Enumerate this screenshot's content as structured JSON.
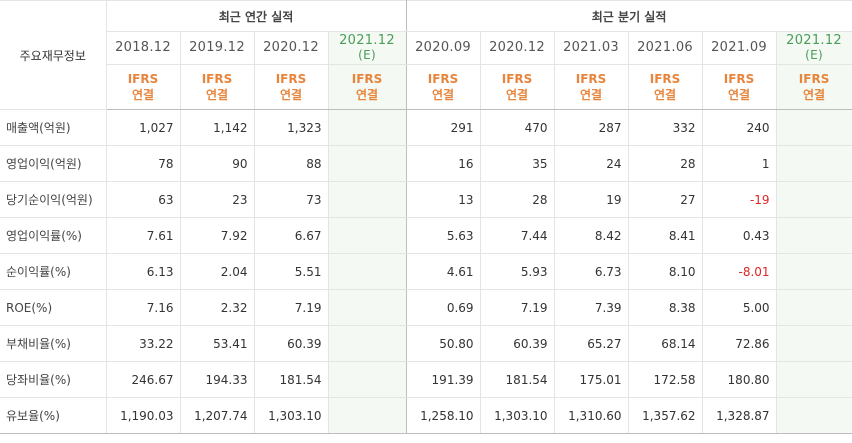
{
  "header": {
    "corner_label": "주요재무정보",
    "annual_group": "최근 연간 실적",
    "quarterly_group": "최근 분기 실적",
    "accounting_line1": "IFRS",
    "accounting_line2": "연결"
  },
  "columns": [
    {
      "period": "2018.12",
      "estimate": ""
    },
    {
      "period": "2019.12",
      "estimate": ""
    },
    {
      "period": "2020.12",
      "estimate": ""
    },
    {
      "period": "2021.12",
      "estimate": "(E)"
    },
    {
      "period": "2020.09",
      "estimate": ""
    },
    {
      "period": "2020.12",
      "estimate": ""
    },
    {
      "period": "2021.03",
      "estimate": ""
    },
    {
      "period": "2021.06",
      "estimate": ""
    },
    {
      "period": "2021.09",
      "estimate": ""
    },
    {
      "period": "2021.12",
      "estimate": "(E)"
    }
  ],
  "rows": [
    {
      "label": "매출액(억원)",
      "values": [
        "1,027",
        "1,142",
        "1,323",
        "",
        "291",
        "470",
        "287",
        "332",
        "240",
        ""
      ]
    },
    {
      "label": "영업이익(억원)",
      "values": [
        "78",
        "90",
        "88",
        "",
        "16",
        "35",
        "24",
        "28",
        "1",
        ""
      ]
    },
    {
      "label": "당기순이익(억원)",
      "values": [
        "63",
        "23",
        "73",
        "",
        "13",
        "28",
        "19",
        "27",
        "-19",
        ""
      ]
    },
    {
      "label": "영업이익률(%)",
      "values": [
        "7.61",
        "7.92",
        "6.67",
        "",
        "5.63",
        "7.44",
        "8.42",
        "8.41",
        "0.43",
        ""
      ]
    },
    {
      "label": "순이익률(%)",
      "values": [
        "6.13",
        "2.04",
        "5.51",
        "",
        "4.61",
        "5.93",
        "6.73",
        "8.10",
        "-8.01",
        ""
      ]
    },
    {
      "label": "ROE(%)",
      "values": [
        "7.16",
        "2.32",
        "7.19",
        "",
        "0.69",
        "7.19",
        "7.39",
        "8.38",
        "5.00",
        ""
      ]
    },
    {
      "label": "부채비율(%)",
      "values": [
        "33.22",
        "53.41",
        "60.39",
        "",
        "50.80",
        "60.39",
        "65.27",
        "68.14",
        "72.86",
        ""
      ]
    },
    {
      "label": "당좌비율(%)",
      "values": [
        "246.67",
        "194.33",
        "181.54",
        "",
        "191.39",
        "181.54",
        "175.01",
        "172.58",
        "180.80",
        ""
      ]
    },
    {
      "label": "유보율(%)",
      "values": [
        "1,190.03",
        "1,207.74",
        "1,303.10",
        "",
        "1,258.10",
        "1,303.10",
        "1,310.60",
        "1,357.62",
        "1,328.87",
        ""
      ]
    }
  ],
  "colors": {
    "accent_orange": "#e8853d",
    "estimate_bg": "#f4faf3",
    "negative": "#e02424"
  }
}
